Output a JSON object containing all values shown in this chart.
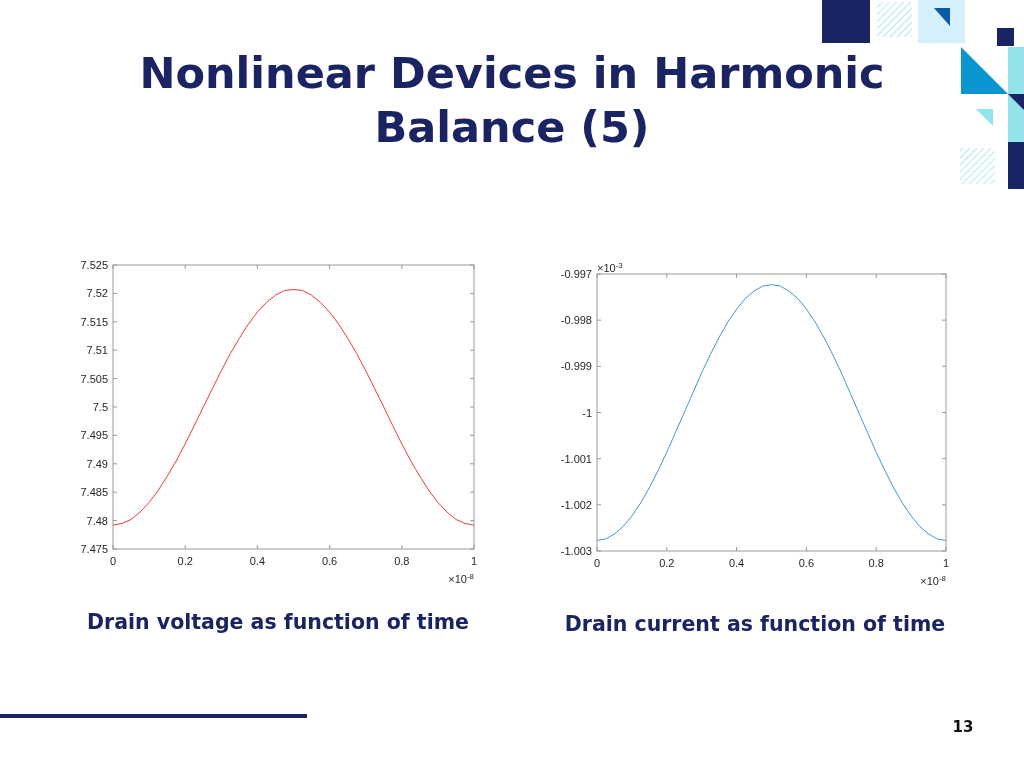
{
  "chart_data": [
    {
      "type": "other",
      "title": "Nonlinear Devices in Harmonic Balance (5)",
      "annotations": [
        "13"
      ]
    },
    {
      "type": "line",
      "title": "Drain voltage as function of time",
      "x": [
        0,
        0.025,
        0.05,
        0.075,
        0.1,
        0.125,
        0.15,
        0.175,
        0.2,
        0.225,
        0.25,
        0.275,
        0.3,
        0.325,
        0.35,
        0.375,
        0.4,
        0.425,
        0.45,
        0.475,
        0.5,
        0.525,
        0.55,
        0.575,
        0.6,
        0.625,
        0.65,
        0.675,
        0.7,
        0.725,
        0.75,
        0.775,
        0.8,
        0.825,
        0.85,
        0.875,
        0.9,
        0.925,
        0.95,
        0.975,
        1
      ],
      "series": [
        {
          "color": "#f03c3c",
          "values": [
            7.4792,
            7.4795,
            7.4802,
            7.4815,
            7.4832,
            7.4853,
            7.4878,
            7.4905,
            7.4935,
            7.4967,
            7.5,
            7.5032,
            7.5064,
            7.5094,
            7.5121,
            7.5146,
            7.5167,
            7.5184,
            7.5197,
            7.5205,
            7.5207,
            7.5205,
            7.5197,
            7.5184,
            7.5167,
            7.5146,
            7.5121,
            7.5094,
            7.5064,
            7.5032,
            7.5,
            7.4967,
            7.4935,
            7.4905,
            7.4878,
            7.4853,
            7.4832,
            7.4815,
            7.4802,
            7.4795,
            7.4792
          ]
        }
      ],
      "xlim": [
        0,
        1
      ],
      "xticks": [
        0,
        0.2,
        0.4,
        0.6,
        0.8,
        1
      ],
      "ylim": [
        7.475,
        7.525
      ],
      "yticks": [
        7.475,
        7.48,
        7.485,
        7.49,
        7.495,
        7.5,
        7.505,
        7.51,
        7.515,
        7.52,
        7.525
      ],
      "annotations": [
        "×10$^{-8}$"
      ]
    },
    {
      "type": "line",
      "title": "Drain current as function of time",
      "x": [
        0,
        0.025,
        0.05,
        0.075,
        0.1,
        0.125,
        0.15,
        0.175,
        0.2,
        0.225,
        0.25,
        0.275,
        0.3,
        0.325,
        0.35,
        0.375,
        0.4,
        0.425,
        0.45,
        0.475,
        0.5,
        0.525,
        0.55,
        0.575,
        0.6,
        0.625,
        0.65,
        0.675,
        0.7,
        0.725,
        0.75,
        0.775,
        0.8,
        0.825,
        0.85,
        0.875,
        0.9,
        0.925,
        0.95,
        0.975,
        1
      ],
      "series": [
        {
          "color": "#4596cc",
          "values": [
            -1.00277,
            -1.00274,
            -1.00263,
            -1.00247,
            -1.00224,
            -1.00196,
            -1.00163,
            -1.00126,
            -1.00086,
            -1.00043,
            -1,
            -0.99957,
            -0.99914,
            -0.99874,
            -0.99837,
            -0.99804,
            -0.99776,
            -0.99753,
            -0.99737,
            -0.99726,
            -0.99723,
            -0.99726,
            -0.99737,
            -0.99753,
            -0.99776,
            -0.99804,
            -0.99837,
            -0.99874,
            -0.99914,
            -0.99957,
            -1,
            -1.00043,
            -1.00086,
            -1.00126,
            -1.00163,
            -1.00196,
            -1.00224,
            -1.00247,
            -1.00263,
            -1.00274,
            -1.00277
          ]
        }
      ],
      "xlim": [
        0,
        1
      ],
      "xticks": [
        0,
        0.2,
        0.4,
        0.6,
        0.8,
        1
      ],
      "ylim": [
        -1.003,
        -0.997
      ],
      "yticks": [
        -1.003,
        -1.002,
        -1.001,
        -1,
        -0.999,
        -0.998,
        -0.997
      ],
      "annotations": [
        "×10$^{-3}$",
        "×10$^{-8}$"
      ]
    }
  ]
}
